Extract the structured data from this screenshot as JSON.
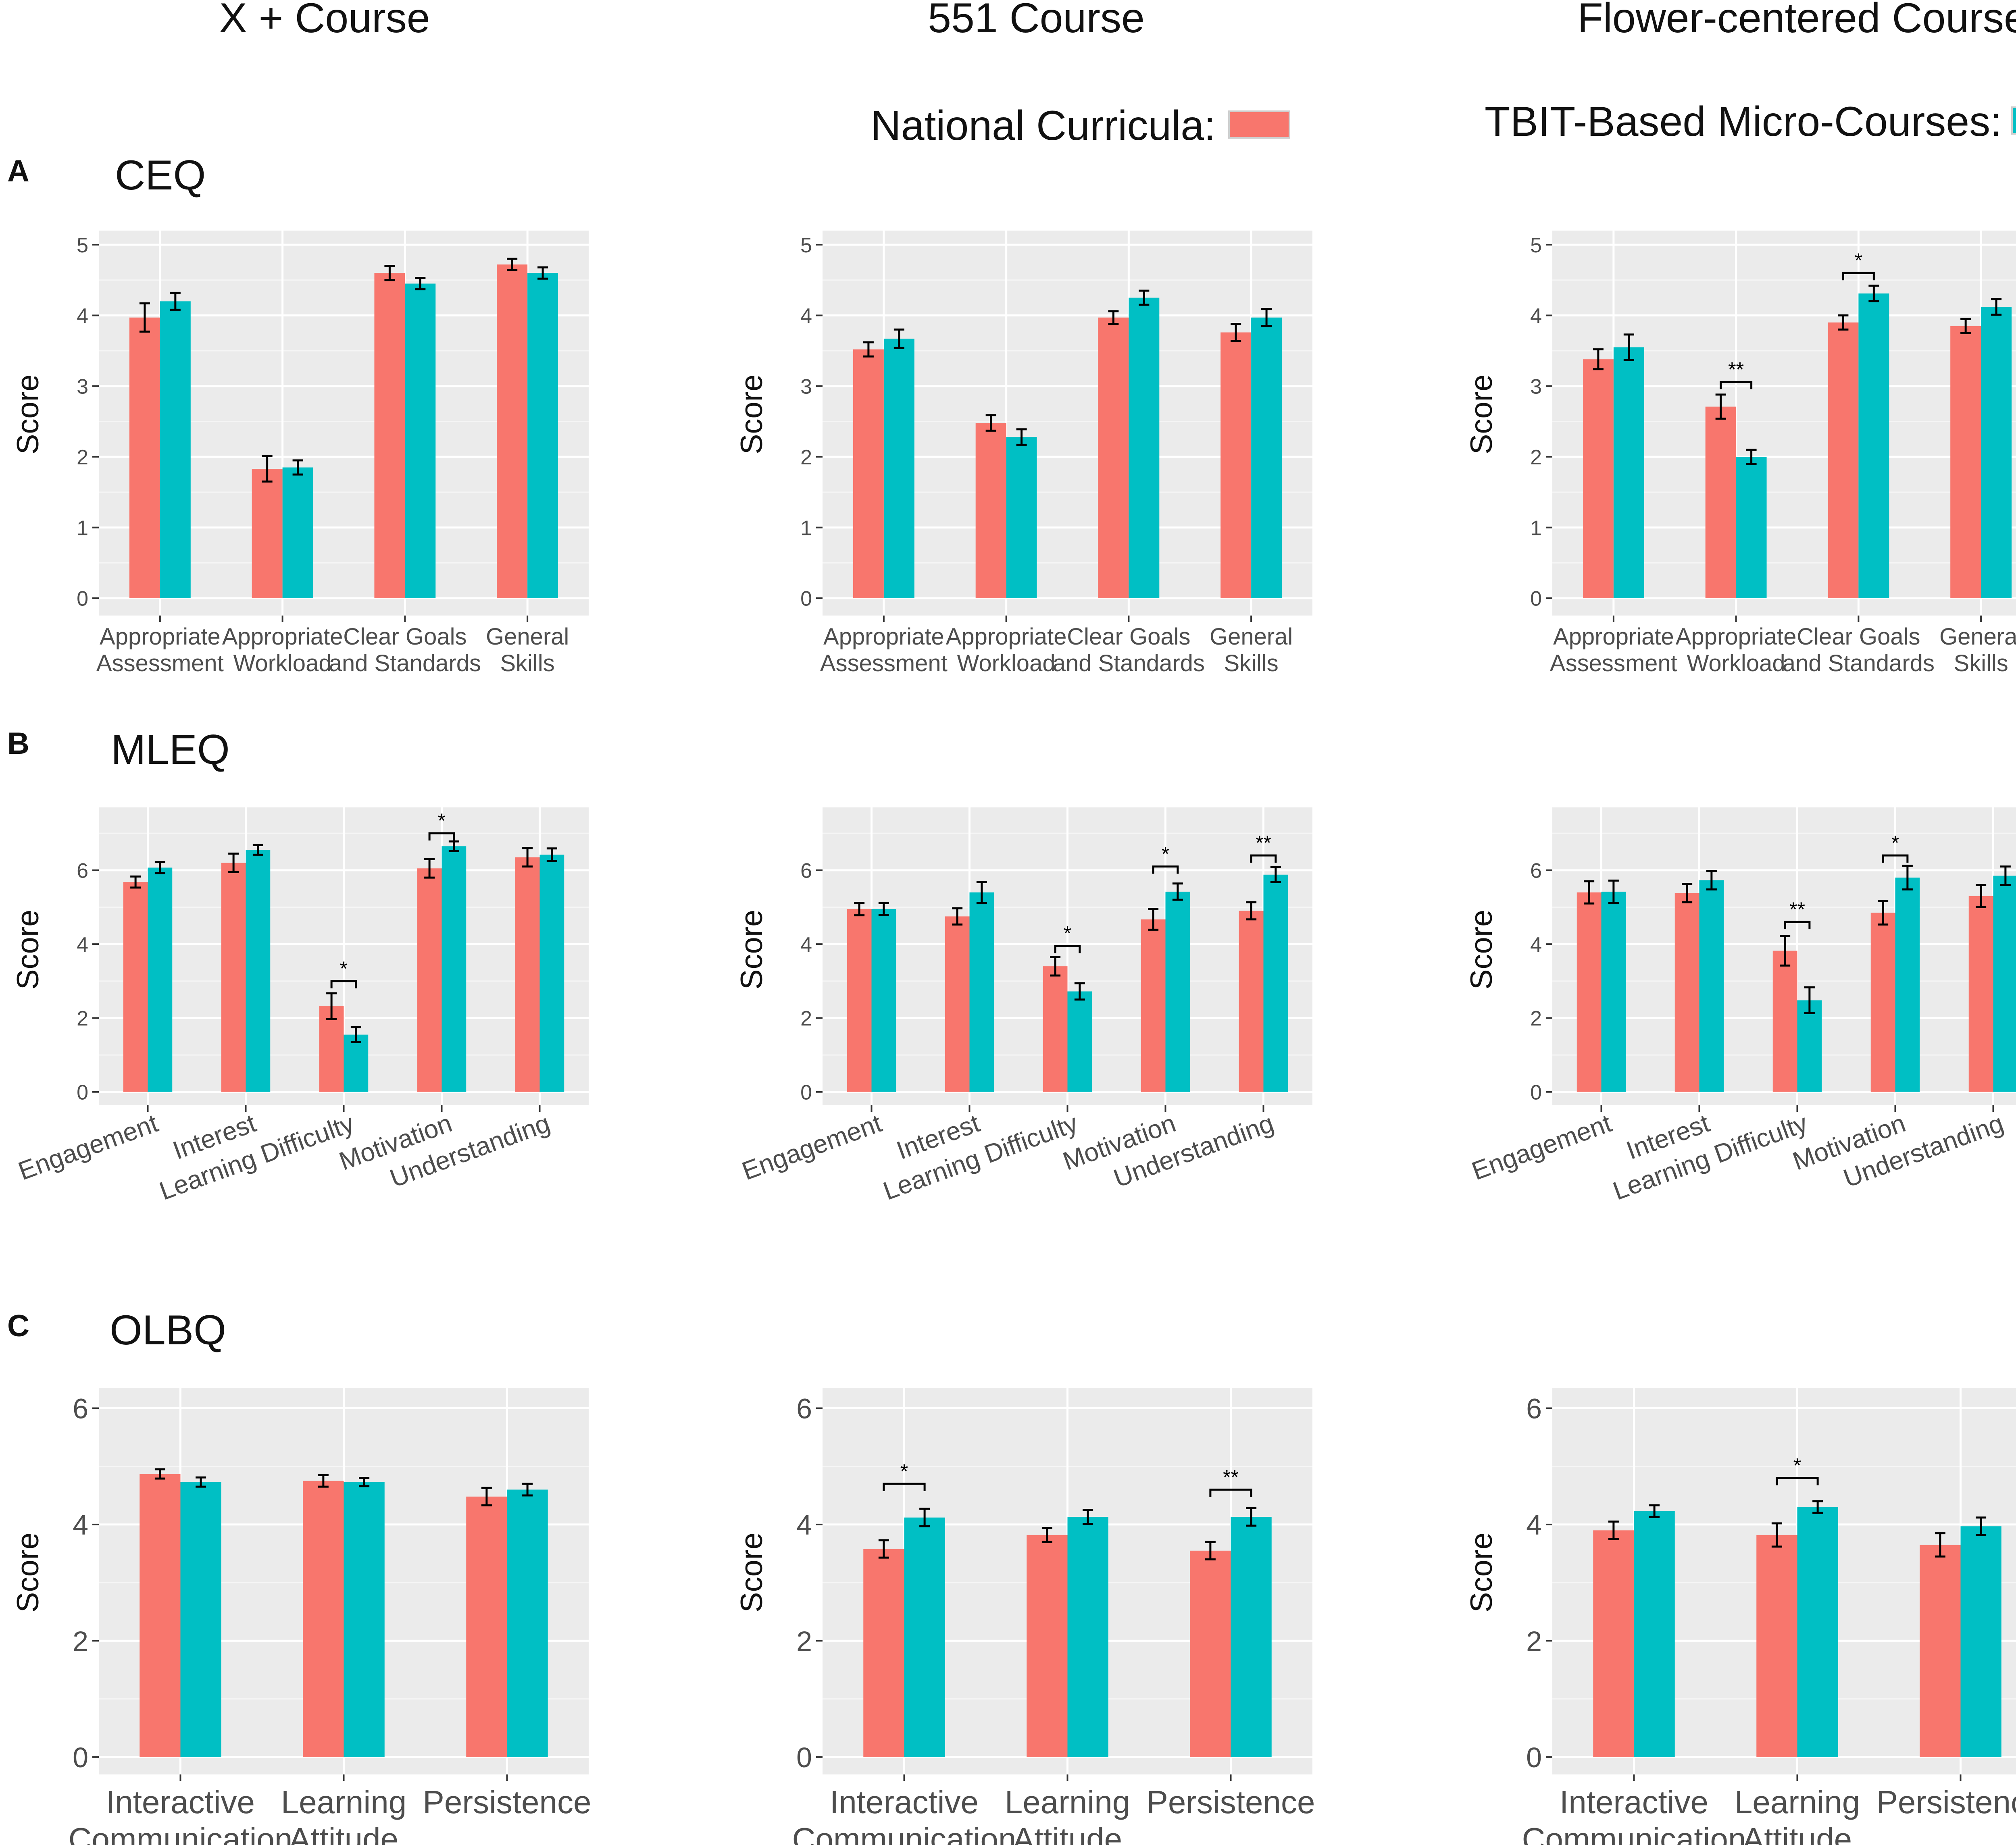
{
  "columns": [
    "X + Course",
    "551 Course",
    "Flower-centered Course"
  ],
  "legend": {
    "national_label": "National Curricula:",
    "tbit_label": "TBIT-Based Micro-Courses:",
    "national_color": "#F8766D",
    "tbit_color": "#00BFC4"
  },
  "rows": [
    {
      "letter": "A",
      "title": "CEQ"
    },
    {
      "letter": "B",
      "title": "MLEQ"
    },
    {
      "letter": "C",
      "title": "OLBQ"
    }
  ],
  "chart_data": [
    {
      "type": "bar",
      "row": 0,
      "col": 0,
      "ylabel": "Score",
      "ylim": [
        0,
        5.2
      ],
      "yticks": [
        0,
        1,
        2,
        3,
        4,
        5
      ],
      "xlabel_style": "two-line",
      "categories": [
        [
          "Appropriate",
          "Assessment"
        ],
        [
          "Appropriate",
          "Workload"
        ],
        [
          "Clear Goals",
          "and Standards"
        ],
        [
          "General",
          "Skills"
        ]
      ],
      "series": [
        {
          "name": "National Curricula",
          "values": [
            3.97,
            1.83,
            4.6,
            4.72
          ],
          "errors": [
            0.2,
            0.18,
            0.1,
            0.08
          ]
        },
        {
          "name": "TBIT-Based Micro-Courses",
          "values": [
            4.2,
            1.85,
            4.45,
            4.6
          ],
          "errors": [
            0.12,
            0.1,
            0.08,
            0.08
          ]
        }
      ],
      "significance": []
    },
    {
      "type": "bar",
      "row": 0,
      "col": 1,
      "ylabel": "Score",
      "ylim": [
        0,
        5.2
      ],
      "yticks": [
        0,
        1,
        2,
        3,
        4,
        5
      ],
      "xlabel_style": "two-line",
      "categories": [
        [
          "Appropriate",
          "Assessment"
        ],
        [
          "Appropriate",
          "Workload"
        ],
        [
          "Clear Goals",
          "and Standards"
        ],
        [
          "General",
          "Skills"
        ]
      ],
      "series": [
        {
          "name": "National Curricula",
          "values": [
            3.52,
            2.48,
            3.97,
            3.76
          ],
          "errors": [
            0.1,
            0.11,
            0.09,
            0.12
          ]
        },
        {
          "name": "TBIT-Based Micro-Courses",
          "values": [
            3.67,
            2.28,
            4.25,
            3.97
          ],
          "errors": [
            0.13,
            0.11,
            0.1,
            0.12
          ]
        }
      ],
      "significance": []
    },
    {
      "type": "bar",
      "row": 0,
      "col": 2,
      "ylabel": "Score",
      "ylim": [
        0,
        5.2
      ],
      "yticks": [
        0,
        1,
        2,
        3,
        4,
        5
      ],
      "xlabel_style": "two-line",
      "categories": [
        [
          "Appropriate",
          "Assessment"
        ],
        [
          "Appropriate",
          "Workload"
        ],
        [
          "Clear Goals",
          "and Standards"
        ],
        [
          "General",
          "Skills"
        ]
      ],
      "series": [
        {
          "name": "National Curricula",
          "values": [
            3.38,
            2.71,
            3.9,
            3.85
          ],
          "errors": [
            0.14,
            0.17,
            0.1,
            0.1
          ]
        },
        {
          "name": "TBIT-Based Micro-Courses",
          "values": [
            3.55,
            2.0,
            4.31,
            4.12
          ],
          "errors": [
            0.18,
            0.1,
            0.11,
            0.11
          ]
        }
      ],
      "significance": [
        {
          "category": 1,
          "label": "**",
          "y": 3.06
        },
        {
          "category": 2,
          "label": "*",
          "y": 4.6
        }
      ]
    },
    {
      "type": "bar",
      "row": 1,
      "col": 0,
      "ylabel": "Score",
      "ylim": [
        0,
        7.7
      ],
      "yticks": [
        0,
        2,
        4,
        6
      ],
      "xlabel_style": "rotated",
      "categories": [
        "Engagement",
        "Interest",
        "Learning Difficulty",
        "Motivation",
        "Understanding"
      ],
      "series": [
        {
          "name": "National Curricula",
          "values": [
            5.68,
            6.2,
            2.32,
            6.05,
            6.35
          ],
          "errors": [
            0.15,
            0.25,
            0.35,
            0.25,
            0.25
          ]
        },
        {
          "name": "TBIT-Based Micro-Courses",
          "values": [
            6.07,
            6.55,
            1.55,
            6.65,
            6.42
          ],
          "errors": [
            0.15,
            0.13,
            0.2,
            0.13,
            0.17
          ]
        }
      ],
      "significance": [
        {
          "category": 2,
          "label": "*",
          "y": 3.0
        },
        {
          "category": 3,
          "label": "*",
          "y": 7.0
        }
      ]
    },
    {
      "type": "bar",
      "row": 1,
      "col": 1,
      "ylabel": "Score",
      "ylim": [
        0,
        7.7
      ],
      "yticks": [
        0,
        2,
        4,
        6
      ],
      "xlabel_style": "rotated",
      "categories": [
        "Engagement",
        "Interest",
        "Learning Difficulty",
        "Motivation",
        "Understanding"
      ],
      "series": [
        {
          "name": "National Curricula",
          "values": [
            4.95,
            4.75,
            3.4,
            4.67,
            4.9
          ],
          "errors": [
            0.17,
            0.22,
            0.25,
            0.28,
            0.23
          ]
        },
        {
          "name": "TBIT-Based Micro-Courses",
          "values": [
            4.95,
            5.4,
            2.72,
            5.42,
            5.88
          ],
          "errors": [
            0.16,
            0.28,
            0.22,
            0.22,
            0.2
          ]
        }
      ],
      "significance": [
        {
          "category": 2,
          "label": "*",
          "y": 3.95
        },
        {
          "category": 3,
          "label": "*",
          "y": 6.1
        },
        {
          "category": 4,
          "label": "**",
          "y": 6.4
        }
      ]
    },
    {
      "type": "bar",
      "row": 1,
      "col": 2,
      "ylabel": "Score",
      "ylim": [
        0,
        7.7
      ],
      "yticks": [
        0,
        2,
        4,
        6
      ],
      "xlabel_style": "rotated",
      "categories": [
        "Engagement",
        "Interest",
        "Learning Difficulty",
        "Motivation",
        "Understanding"
      ],
      "series": [
        {
          "name": "National Curricula",
          "values": [
            5.4,
            5.38,
            3.82,
            4.85,
            5.3
          ],
          "errors": [
            0.3,
            0.25,
            0.4,
            0.32,
            0.3
          ]
        },
        {
          "name": "TBIT-Based Micro-Courses",
          "values": [
            5.42,
            5.73,
            2.48,
            5.8,
            5.85
          ],
          "errors": [
            0.3,
            0.25,
            0.35,
            0.32,
            0.25
          ]
        }
      ],
      "significance": [
        {
          "category": 2,
          "label": "**",
          "y": 4.6
        },
        {
          "category": 3,
          "label": "*",
          "y": 6.4
        }
      ]
    },
    {
      "type": "bar",
      "row": 2,
      "col": 0,
      "ylabel": "Score",
      "ylim": [
        0,
        6.35
      ],
      "yticks": [
        0,
        2,
        4,
        6
      ],
      "xlabel_style": "two-line-large",
      "categories": [
        [
          "Interactive",
          "Communication"
        ],
        [
          "Learning",
          "Attitude"
        ],
        [
          "Persistence"
        ]
      ],
      "series": [
        {
          "name": "National Curricula",
          "values": [
            4.87,
            4.75,
            4.48
          ],
          "errors": [
            0.08,
            0.1,
            0.15
          ]
        },
        {
          "name": "TBIT-Based Micro-Courses",
          "values": [
            4.73,
            4.73,
            4.6
          ],
          "errors": [
            0.08,
            0.07,
            0.1
          ]
        }
      ],
      "significance": []
    },
    {
      "type": "bar",
      "row": 2,
      "col": 1,
      "ylabel": "Score",
      "ylim": [
        0,
        6.35
      ],
      "yticks": [
        0,
        2,
        4,
        6
      ],
      "xlabel_style": "two-line-large",
      "categories": [
        [
          "Interactive",
          "Communication"
        ],
        [
          "Learning",
          "Attitude"
        ],
        [
          "Persistence"
        ]
      ],
      "series": [
        {
          "name": "National Curricula",
          "values": [
            3.58,
            3.82,
            3.55
          ],
          "errors": [
            0.15,
            0.12,
            0.15
          ]
        },
        {
          "name": "TBIT-Based Micro-Courses",
          "values": [
            4.12,
            4.13,
            4.13
          ],
          "errors": [
            0.15,
            0.12,
            0.15
          ]
        }
      ],
      "significance": [
        {
          "category": 0,
          "label": "*",
          "y": 4.7
        },
        {
          "category": 2,
          "label": "**",
          "y": 4.6
        }
      ]
    },
    {
      "type": "bar",
      "row": 2,
      "col": 2,
      "ylabel": "Score",
      "ylim": [
        0,
        6.35
      ],
      "yticks": [
        0,
        2,
        4,
        6
      ],
      "xlabel_style": "two-line-large",
      "categories": [
        [
          "Interactive",
          "Communication"
        ],
        [
          "Learning",
          "Attitude"
        ],
        [
          "Persistence"
        ]
      ],
      "series": [
        {
          "name": "National Curricula",
          "values": [
            3.9,
            3.82,
            3.65
          ],
          "errors": [
            0.15,
            0.2,
            0.2
          ]
        },
        {
          "name": "TBIT-Based Micro-Courses",
          "values": [
            4.23,
            4.3,
            3.97
          ],
          "errors": [
            0.1,
            0.1,
            0.15
          ]
        }
      ],
      "significance": [
        {
          "category": 1,
          "label": "*",
          "y": 4.8
        }
      ]
    }
  ]
}
